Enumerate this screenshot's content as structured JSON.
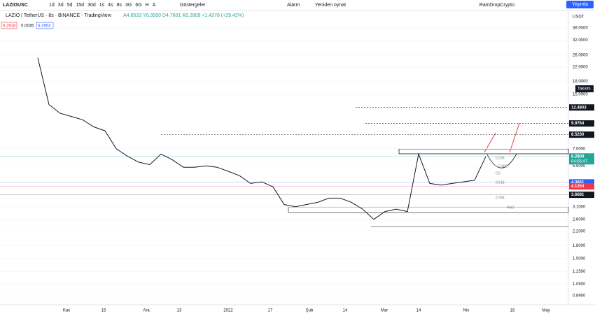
{
  "toolbar": {
    "symbol": "LAZIOUSC",
    "intervals": [
      "1d",
      "3d",
      "5d",
      "15d",
      "30d",
      "1s",
      "4s",
      "8s",
      "3G",
      "6G",
      "H",
      "A"
    ],
    "indicators": "Göstergeler",
    "alert": "Alarm",
    "replay": "Yeniden oynat",
    "user": "RainDropCrypto",
    "publish": "Yayınla"
  },
  "legend": {
    "pair": "LAZIO / TetherUS",
    "interval": "8s",
    "exchange": "BINANCE",
    "source": "TradingView",
    "ohlc": "A4.8533 Y6.3500 D4.7601 K6.2809 +1.4278 (+29.42%)",
    "bid": "6.2918",
    "spread": "0.0035",
    "ask": "6.2953"
  },
  "chart": {
    "type": "line",
    "log_scale": true,
    "currency": "USDT",
    "calendar": "Takvim",
    "ylim": [
      0.784,
      49.1
    ],
    "yticks": [
      {
        "value": 38,
        "label": "38.0000"
      },
      {
        "value": 32,
        "label": "32.0000"
      },
      {
        "value": 26,
        "label": "26.0000"
      },
      {
        "value": 22,
        "label": "22.0000"
      },
      {
        "value": 18,
        "label": "18.0000"
      },
      {
        "value": 15,
        "label": "15.0000"
      },
      {
        "value": 7,
        "label": "7.0000"
      },
      {
        "value": 5.5,
        "label": "5.5000"
      },
      {
        "value": 3.1,
        "label": "3.1000"
      },
      {
        "value": 2.6,
        "label": "2.6000"
      },
      {
        "value": 2.2,
        "label": "2.2000"
      },
      {
        "value": 1.8,
        "label": "1.8000"
      },
      {
        "value": 1.5,
        "label": "1.5000"
      },
      {
        "value": 1.25,
        "label": "1.2500"
      },
      {
        "value": 1.05,
        "label": "1.0500"
      },
      {
        "value": 0.89,
        "label": "0.8900"
      }
    ],
    "x_labels": [
      "Kas",
      "15",
      "Ara",
      "13",
      "2022",
      "17",
      "Şub",
      "14",
      "Mar",
      "14",
      "Nis",
      "18",
      "May"
    ],
    "closes": [
      25,
      13,
      11.5,
      11,
      10.5,
      9.5,
      9,
      7,
      6.3,
      5.8,
      5.6,
      6.5,
      6,
      5.4,
      5.4,
      5.5,
      5.4,
      5.1,
      4.8,
      4.3,
      4.4,
      4.1,
      3.2,
      3.1,
      3.2,
      3.3,
      3.5,
      3.5,
      3.3,
      3.0,
      2.6,
      2.9,
      3.0,
      2.9,
      6.5,
      4.3,
      4.2,
      4.3,
      4.4,
      4.5,
      6.28
    ],
    "color": "#131722",
    "price_tags": [
      {
        "value": 12.4803,
        "label": "12.4803",
        "color": "#131722",
        "dashed": true
      },
      {
        "value": 9.9764,
        "label": "9.9764",
        "color": "#131722",
        "dashed": true
      },
      {
        "value": 8.523,
        "label": "8.5230",
        "color": "#131722",
        "dashed": true
      },
      {
        "value": 6.2809,
        "label": "6.2809",
        "color": "#26a69a",
        "countdown": "04:55:47"
      },
      {
        "value": 4.3661,
        "label": "4.3661",
        "color": "#2962ff"
      },
      {
        "value": 4.1254,
        "label": "4.1254",
        "color": "#f23645"
      },
      {
        "value": 3.6681,
        "label": "3.6681",
        "color": "#131722"
      }
    ],
    "fib_labels": [
      "0.236",
      "0.382",
      "0.5",
      "0.618",
      "0.786",
      "PAO"
    ]
  }
}
